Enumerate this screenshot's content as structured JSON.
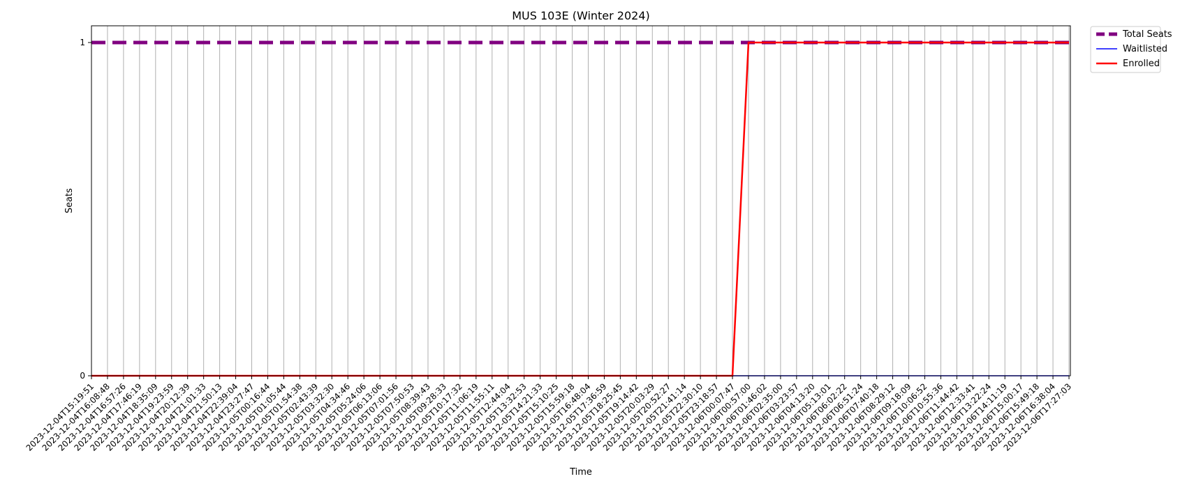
{
  "chart_data": {
    "type": "line",
    "title": "MUS 103E (Winter 2024)",
    "xlabel": "Time",
    "ylabel": "Seats",
    "ylim": [
      0,
      1.05
    ],
    "yticks": [
      0,
      1
    ],
    "grid_x": true,
    "legend_position": "outside-top-right",
    "x": [
      "2023-12-04T15:19:51",
      "2023-12-04T16:08:48",
      "2023-12-04T16:57:26",
      "2023-12-04T17:46:19",
      "2023-12-04T18:35:09",
      "2023-12-04T19:23:59",
      "2023-12-04T20:12:39",
      "2023-12-04T21:01:33",
      "2023-12-04T21:50:13",
      "2023-12-04T22:39:04",
      "2023-12-04T23:27:47",
      "2023-12-05T00:16:44",
      "2023-12-05T01:05:44",
      "2023-12-05T01:54:38",
      "2023-12-05T02:43:39",
      "2023-12-05T03:32:30",
      "2023-12-05T04:34:46",
      "2023-12-05T05:24:06",
      "2023-12-05T06:13:06",
      "2023-12-05T07:01:56",
      "2023-12-05T07:50:53",
      "2023-12-05T08:39:43",
      "2023-12-05T09:28:33",
      "2023-12-05T10:17:32",
      "2023-12-05T11:06:19",
      "2023-12-05T11:55:11",
      "2023-12-05T12:44:04",
      "2023-12-05T13:32:53",
      "2023-12-05T14:21:33",
      "2023-12-05T15:10:25",
      "2023-12-05T15:59:18",
      "2023-12-05T16:48:04",
      "2023-12-05T17:36:59",
      "2023-12-05T18:25:45",
      "2023-12-05T19:14:42",
      "2023-12-05T20:03:29",
      "2023-12-05T20:52:27",
      "2023-12-05T21:41:14",
      "2023-12-05T22:30:10",
      "2023-12-05T23:18:57",
      "2023-12-06T00:07:47",
      "2023-12-06T00:57:00",
      "2023-12-06T01:46:02",
      "2023-12-06T02:35:00",
      "2023-12-06T03:23:57",
      "2023-12-06T04:13:20",
      "2023-12-06T05:13:01",
      "2023-12-06T06:02:22",
      "2023-12-06T06:51:24",
      "2023-12-06T07:40:18",
      "2023-12-06T08:29:12",
      "2023-12-06T09:18:09",
      "2023-12-06T10:06:52",
      "2023-12-06T10:55:36",
      "2023-12-06T11:44:42",
      "2023-12-06T12:33:41",
      "2023-12-06T13:22:24",
      "2023-12-06T14:11:19",
      "2023-12-06T15:00:17",
      "2023-12-06T15:49:18",
      "2023-12-06T16:38:04",
      "2023-12-06T17:27:03"
    ],
    "series": [
      {
        "name": "Total Seats",
        "color": "#800080",
        "style": "dashed",
        "values": [
          1,
          1,
          1,
          1,
          1,
          1,
          1,
          1,
          1,
          1,
          1,
          1,
          1,
          1,
          1,
          1,
          1,
          1,
          1,
          1,
          1,
          1,
          1,
          1,
          1,
          1,
          1,
          1,
          1,
          1,
          1,
          1,
          1,
          1,
          1,
          1,
          1,
          1,
          1,
          1,
          1,
          1,
          1,
          1,
          1,
          1,
          1,
          1,
          1,
          1,
          1,
          1,
          1,
          1,
          1,
          1,
          1,
          1,
          1,
          1,
          1,
          1
        ]
      },
      {
        "name": "Waitlisted",
        "color": "#0000ff",
        "style": "solid",
        "values": [
          0,
          0,
          0,
          0,
          0,
          0,
          0,
          0,
          0,
          0,
          0,
          0,
          0,
          0,
          0,
          0,
          0,
          0,
          0,
          0,
          0,
          0,
          0,
          0,
          0,
          0,
          0,
          0,
          0,
          0,
          0,
          0,
          0,
          0,
          0,
          0,
          0,
          0,
          0,
          0,
          0,
          0,
          0,
          0,
          0,
          0,
          0,
          0,
          0,
          0,
          0,
          0,
          0,
          0,
          0,
          0,
          0,
          0,
          0,
          0,
          0,
          0
        ]
      },
      {
        "name": "Enrolled",
        "color": "#ff0000",
        "style": "solid",
        "values": [
          0,
          0,
          0,
          0,
          0,
          0,
          0,
          0,
          0,
          0,
          0,
          0,
          0,
          0,
          0,
          0,
          0,
          0,
          0,
          0,
          0,
          0,
          0,
          0,
          0,
          0,
          0,
          0,
          0,
          0,
          0,
          0,
          0,
          0,
          0,
          0,
          0,
          0,
          0,
          0,
          0,
          1,
          1,
          1,
          1,
          1,
          1,
          1,
          1,
          1,
          1,
          1,
          1,
          1,
          1,
          1,
          1,
          1,
          1,
          1,
          1,
          1
        ]
      }
    ]
  }
}
